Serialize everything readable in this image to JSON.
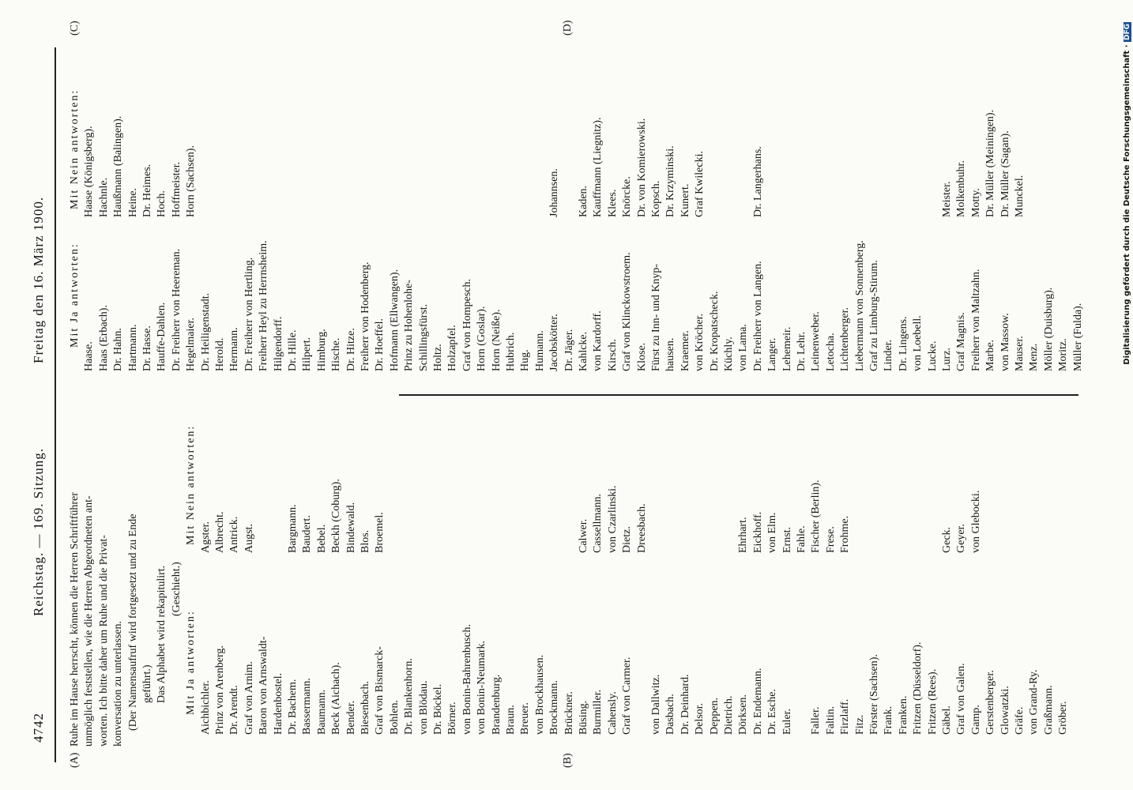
{
  "header": {
    "page_number": "4742",
    "title": "Reichstag. — 169. Sitzung.",
    "date": "Freitag den 16. März 1900."
  },
  "margin_marks": [
    "(A)",
    "(B)",
    "(C)",
    "(D)"
  ],
  "left_column": {
    "paragraph": [
      "Ruhe im Hause herrscht, können die Herren Schriftführer",
      "unmöglich feststellen, wie die Herren Abgeordneten ant-",
      "worten. Ich bitte daher um Ruhe und die Privat-",
      "konversation zu unterlassen."
    ],
    "stage_direction": [
      "(Der Namensaufruf wird fortgesetzt und zu Ende",
      "geführt.)"
    ],
    "alphabet": "Das Alphabet wird rekapitulirt.",
    "note": "(Geschieht.)",
    "yes_heading": "Mit Ja antworten:",
    "no_heading": "Mit Nein antworten:",
    "rows": [
      [
        "Aichbichler.",
        "Agster."
      ],
      [
        "Prinz von Arenberg.",
        "Albrecht."
      ],
      [
        "Dr. Arendt.",
        "Antrick."
      ],
      [
        "Graf von Arnim.",
        "Augst."
      ],
      [
        "Baron von Arnswaldt-",
        null
      ],
      [
        "Hardenbostel.",
        null
      ],
      [
        "Dr. Bachem.",
        "Bargmann."
      ],
      [
        "Bassermann.",
        "Baudert."
      ],
      [
        "Baumann.",
        "Bebel."
      ],
      [
        "Beck (Aichach).",
        "Beckh (Coburg)."
      ],
      [
        "Bender.",
        "Bindewald."
      ],
      [
        "Biesenbach.",
        "Blos."
      ],
      [
        "Graf von Bismarck-",
        "Broemel."
      ],
      [
        "Bohlen.",
        null
      ],
      [
        "Dr. Blankenhorn.",
        null
      ],
      [
        "von Blödau.",
        null
      ],
      [
        "Dr. Böckel.",
        null
      ],
      [
        "Börner.",
        null
      ],
      [
        "von Bonin-Bahrenbusch.",
        null
      ],
      [
        "von Bonin-Neumark.",
        null
      ],
      [
        "Brandenburg.",
        null
      ],
      [
        "Braun.",
        null
      ],
      [
        "Breuer.",
        null
      ],
      [
        "von Brockhausen.",
        null
      ],
      [
        "Brockmann.",
        null
      ],
      [
        "Brückner.",
        null
      ],
      [
        "Büsing.",
        "Calwer."
      ],
      [
        "Burmiller.",
        "Cassellmann."
      ],
      [
        "Cahensly.",
        "von Czarlinski."
      ],
      [
        "Graf von Carmer.",
        "Dietz."
      ],
      [
        null,
        "Dreesbach."
      ],
      [
        "von Dallwitz.",
        null
      ],
      [
        "Dasbach.",
        null
      ],
      [
        "Dr. Deinhard.",
        null
      ],
      [
        "Delsor.",
        null
      ],
      [
        "Deppen.",
        null
      ],
      [
        "Dietrich.",
        null
      ],
      [
        "Dörksen.",
        "Ehrhart."
      ],
      [
        "Dr. Endemann.",
        "Eickhoff."
      ],
      [
        "Dr. Esche.",
        "von Elm."
      ],
      [
        "Euler.",
        "Ernst."
      ],
      [
        null,
        "Fahle."
      ],
      [
        "Faller.",
        "Fischer (Berlin)."
      ],
      [
        "Faltin.",
        "Frese."
      ],
      [
        "Firzlaff.",
        "Frohme."
      ],
      [
        "Fitz.",
        null
      ],
      [
        "Förster (Sachsen).",
        null
      ],
      [
        "Frank.",
        null
      ],
      [
        "Franken.",
        null
      ],
      [
        "Fritzen (Düsseldorf).",
        null
      ],
      [
        "Fritzen (Rees).",
        null
      ],
      [
        "Gäbel.",
        "Geck."
      ],
      [
        "Graf von Galen.",
        "Geyer."
      ],
      [
        "Gamp.",
        "von Glebocki."
      ],
      [
        "Gerstenberger.",
        null
      ],
      [
        "Glowatzki.",
        null
      ],
      [
        "Gräfe.",
        null
      ],
      [
        "von Grand-Ry.",
        null
      ],
      [
        "Graßmann.",
        null
      ],
      [
        "Gröber.",
        null
      ]
    ]
  },
  "right_column": {
    "yes_heading": "Mit Ja antworten:",
    "no_heading": "Mit Nein antworten:",
    "rows": [
      [
        "Haase.",
        "Haase (Königsberg)."
      ],
      [
        "Haas (Erbach).",
        "Hachnle."
      ],
      [
        "Dr. Hahn.",
        "Haußmann (Balingen)."
      ],
      [
        "Hartmann.",
        "Heine."
      ],
      [
        "Dr. Hasse.",
        "Dr. Heimes."
      ],
      [
        "Hauffe-Dahlen.",
        "Hoch."
      ],
      [
        "Dr. Freiherr von Heereman.",
        "Hoffmeister."
      ],
      [
        "Hegelmaier.",
        "Horn (Sachsen)."
      ],
      [
        "Dr. Heiligenstadt.",
        null
      ],
      [
        "Herold.",
        null
      ],
      [
        "Hermann.",
        null
      ],
      [
        "Dr. Freiherr von Hertling.",
        null
      ],
      [
        "Freiherr Heyl zu Herrnsheim.",
        null
      ],
      [
        "Hilgendorff.",
        null
      ],
      [
        "Dr. Hille.",
        null
      ],
      [
        "Hilpert.",
        null
      ],
      [
        "Himburg.",
        null
      ],
      [
        "Hische.",
        null
      ],
      [
        "Dr. Hitze.",
        null
      ],
      [
        "Freiherr von Hodenberg.",
        null
      ],
      [
        "Dr. Hoeffel.",
        null
      ],
      [
        "Hofmann (Ellwangen).",
        null
      ],
      [
        "Prinz zu Hohenlohe-",
        null
      ],
      [
        "Schillingsfürst.",
        null
      ],
      [
        "Holtz.",
        null
      ],
      [
        "Holzapfel.",
        null
      ],
      [
        "Graf von Hompesch.",
        null
      ],
      [
        "Horn (Goslar).",
        null
      ],
      [
        "Horn (Neiße).",
        null
      ],
      [
        "Hubrich.",
        null
      ],
      [
        "Hug.",
        null
      ],
      [
        "Humann.",
        null
      ],
      [
        "Jacobskötter.",
        "Johannsen."
      ],
      [
        "Dr. Jäger.",
        null
      ],
      [
        "Kahlcke.",
        "Kaden."
      ],
      [
        "von Kardorff.",
        "Kauffmann (Liegnitz)."
      ],
      [
        "Kirsch.",
        "Klees."
      ],
      [
        "Graf von Klinckowstroem.",
        "Knörcke."
      ],
      [
        "Klose.",
        "Dr. von Komierowski."
      ],
      [
        "Fürst zu Inn- und Knyp-",
        "Kopsch."
      ],
      [
        "hausen.",
        "Dr. Krzyminski."
      ],
      [
        "Kraemer.",
        "Kunert."
      ],
      [
        "von Kröcher.",
        "Graf Kwilecki."
      ],
      [
        "Dr. Kropatscheck.",
        null
      ],
      [
        "Küchly.",
        null
      ],
      [
        "von Lama.",
        null
      ],
      [
        "Dr. Freiherr von Langen.",
        "Dr. Langerhans."
      ],
      [
        "Langer.",
        null
      ],
      [
        "Lehemeir.",
        null
      ],
      [
        "Dr. Lehr.",
        null
      ],
      [
        "Leinenweber.",
        null
      ],
      [
        "Letocha.",
        null
      ],
      [
        "Lichtenberger.",
        null
      ],
      [
        "Liebermann von Sonnenberg.",
        null
      ],
      [
        "Graf zu Limburg-Stirum.",
        null
      ],
      [
        "Linder.",
        null
      ],
      [
        "Dr. Lingens.",
        null
      ],
      [
        "von Loebell.",
        null
      ],
      [
        "Lucke.",
        null
      ],
      [
        "Lurz.",
        "Meister."
      ],
      [
        "Graf Magnis.",
        "Molkenbuhr."
      ],
      [
        "Freiherr von Maltzahn.",
        "Motty."
      ],
      [
        "Marbe.",
        "Dr. Müller (Meiningen)."
      ],
      [
        "von Massow.",
        "Dr. Müller (Sagan)."
      ],
      [
        "Mauser.",
        "Munckel."
      ],
      [
        "Menz.",
        null
      ],
      [
        "Möller (Duisburg).",
        null
      ],
      [
        "Moritz.",
        null
      ],
      [
        "Müller (Fulda).",
        null
      ]
    ]
  },
  "footer": {
    "credit": "Digitalisierung gefördert durch die Deutsche Forschungsgemeinschaft ·",
    "logo": "DFG"
  }
}
